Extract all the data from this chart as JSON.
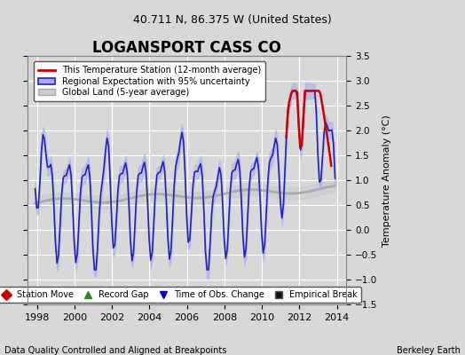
{
  "title": "LOGANSPORT CASS CO",
  "subtitle": "40.711 N, 86.375 W (United States)",
  "ylabel": "Temperature Anomaly (°C)",
  "xlabel_bottom": "Data Quality Controlled and Aligned at Breakpoints",
  "xlabel_right": "Berkeley Earth",
  "ylim": [
    -1.5,
    3.5
  ],
  "xlim": [
    1997.5,
    2014.5
  ],
  "yticks": [
    -1.5,
    -1.0,
    -0.5,
    0.0,
    0.5,
    1.0,
    1.5,
    2.0,
    2.5,
    3.0,
    3.5
  ],
  "xticks": [
    1998,
    2000,
    2002,
    2004,
    2006,
    2008,
    2010,
    2012,
    2014
  ],
  "bg_color": "#d8d8d8",
  "plot_bg_color": "#d8d8d8",
  "grid_color": "#ffffff",
  "regional_color": "#2222bb",
  "regional_fill_color": "#aaaaee",
  "station_color": "#cc0000",
  "global_color": "#aaaaaa",
  "legend_entries": [
    "This Temperature Station (12-month average)",
    "Regional Expectation with 95% uncertainty",
    "Global Land (5-year average)"
  ],
  "marker_legend": [
    {
      "label": "Station Move",
      "color": "#cc0000",
      "marker": "D"
    },
    {
      "label": "Record Gap",
      "color": "#228B22",
      "marker": "^"
    },
    {
      "label": "Time of Obs. Change",
      "color": "#0000cc",
      "marker": "v"
    },
    {
      "label": "Empirical Break",
      "color": "#111111",
      "marker": "s"
    }
  ]
}
